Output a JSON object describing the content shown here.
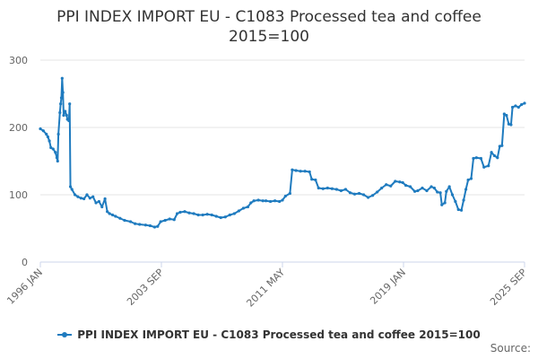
{
  "chart_data": {
    "type": "line",
    "title": "PPI INDEX IMPORT EU - C1083 Processed tea and coffee",
    "subtitle": "2015=100",
    "ylim": [
      0,
      300
    ],
    "yticks": [
      0,
      100,
      200,
      300
    ],
    "xtick_labels": [
      "1996 JAN",
      "2003 SEP",
      "2011 MAY",
      "2019 JAN",
      "2025 SEP"
    ],
    "xtick_values": [
      1996.0,
      2003.667,
      2011.333,
      2019.0,
      2025.667
    ],
    "xlim": [
      1996.0,
      2025.667
    ],
    "grid": "horizontal",
    "legend_position": "bottom",
    "color": "#1f7bbf",
    "source_label": "Source:",
    "series": [
      {
        "name": "PPI INDEX IMPORT EU - C1083 Processed tea and coffee 2015=100",
        "points": [
          [
            1996.0,
            198
          ],
          [
            1996.2,
            195
          ],
          [
            1996.4,
            190
          ],
          [
            1996.5,
            186
          ],
          [
            1996.6,
            180
          ],
          [
            1996.7,
            170
          ],
          [
            1996.85,
            168
          ],
          [
            1997.0,
            163
          ],
          [
            1997.1,
            155
          ],
          [
            1997.15,
            150
          ],
          [
            1997.2,
            190
          ],
          [
            1997.3,
            222
          ],
          [
            1997.35,
            235
          ],
          [
            1997.4,
            244
          ],
          [
            1997.45,
            273
          ],
          [
            1997.5,
            252
          ],
          [
            1997.55,
            218
          ],
          [
            1997.65,
            224
          ],
          [
            1997.75,
            218
          ],
          [
            1997.8,
            212
          ],
          [
            1997.9,
            210
          ],
          [
            1997.95,
            235
          ],
          [
            1998.0,
            112
          ],
          [
            1998.1,
            108
          ],
          [
            1998.3,
            100
          ],
          [
            1998.5,
            97
          ],
          [
            1998.7,
            95
          ],
          [
            1998.9,
            94
          ],
          [
            1999.1,
            100
          ],
          [
            1999.3,
            95
          ],
          [
            1999.5,
            97
          ],
          [
            1999.7,
            88
          ],
          [
            1999.9,
            90
          ],
          [
            2000.1,
            82
          ],
          [
            2000.3,
            94
          ],
          [
            2000.45,
            75
          ],
          [
            2000.6,
            72
          ],
          [
            2000.8,
            70
          ],
          [
            2001.0,
            68
          ],
          [
            2001.3,
            65
          ],
          [
            2001.6,
            62
          ],
          [
            2002.0,
            60
          ],
          [
            2002.3,
            57
          ],
          [
            2002.6,
            56
          ],
          [
            2003.0,
            55
          ],
          [
            2003.3,
            54
          ],
          [
            2003.6,
            52
          ],
          [
            2003.8,
            53
          ],
          [
            2004.0,
            60
          ],
          [
            2004.3,
            62
          ],
          [
            2004.6,
            64
          ],
          [
            2004.9,
            63
          ],
          [
            2005.1,
            72
          ],
          [
            2005.3,
            74
          ],
          [
            2005.6,
            75
          ],
          [
            2005.9,
            73
          ],
          [
            2006.2,
            72
          ],
          [
            2006.5,
            70
          ],
          [
            2006.8,
            70
          ],
          [
            2007.1,
            71
          ],
          [
            2007.4,
            70
          ],
          [
            2007.7,
            68
          ],
          [
            2008.0,
            66
          ],
          [
            2008.3,
            67
          ],
          [
            2008.6,
            70
          ],
          [
            2008.9,
            72
          ],
          [
            2009.2,
            76
          ],
          [
            2009.5,
            80
          ],
          [
            2009.8,
            82
          ],
          [
            2010.0,
            88
          ],
          [
            2010.2,
            91
          ],
          [
            2010.5,
            92
          ],
          [
            2010.8,
            91
          ],
          [
            2011.0,
            91
          ],
          [
            2011.3,
            90
          ],
          [
            2011.6,
            91
          ],
          [
            2011.9,
            90
          ],
          [
            2012.1,
            92
          ],
          [
            2012.3,
            98
          ],
          [
            2012.6,
            102
          ],
          [
            2012.75,
            137
          ],
          [
            2013.0,
            136
          ],
          [
            2013.3,
            135
          ],
          [
            2013.6,
            135
          ],
          [
            2013.9,
            134
          ],
          [
            2014.05,
            123
          ],
          [
            2014.3,
            122
          ],
          [
            2014.5,
            110
          ],
          [
            2014.8,
            109
          ],
          [
            2015.1,
            110
          ],
          [
            2015.4,
            109
          ],
          [
            2015.7,
            108
          ],
          [
            2016.0,
            106
          ],
          [
            2016.3,
            108
          ],
          [
            2016.6,
            103
          ],
          [
            2016.9,
            101
          ],
          [
            2017.2,
            102
          ],
          [
            2017.5,
            100
          ],
          [
            2017.8,
            96
          ],
          [
            2018.1,
            99
          ],
          [
            2018.4,
            104
          ],
          [
            2018.7,
            110
          ],
          [
            2019.0,
            115
          ],
          [
            2019.3,
            113
          ],
          [
            2019.6,
            120
          ],
          [
            2019.9,
            119
          ],
          [
            2020.1,
            118
          ],
          [
            2020.3,
            114
          ],
          [
            2020.6,
            112
          ],
          [
            2020.9,
            105
          ],
          [
            2021.1,
            106
          ],
          [
            2021.4,
            110
          ],
          [
            2021.7,
            106
          ],
          [
            2022.0,
            112
          ],
          [
            2022.2,
            110
          ],
          [
            2022.4,
            104
          ],
          [
            2022.6,
            103
          ],
          [
            2022.7,
            85
          ],
          [
            2022.9,
            88
          ],
          [
            2023.0,
            105
          ],
          [
            2023.2,
            112
          ],
          [
            2023.4,
            100
          ],
          [
            2023.6,
            90
          ],
          [
            2023.8,
            78
          ],
          [
            2024.0,
            77
          ],
          [
            2024.15,
            92
          ],
          [
            2024.3,
            108
          ],
          [
            2024.45,
            122
          ],
          [
            2024.65,
            124
          ],
          [
            2024.8,
            154
          ],
          [
            2025.0,
            155
          ],
          [
            2025.3,
            154
          ],
          [
            2025.5,
            141
          ],
          [
            2025.8,
            143
          ],
          [
            2026.0,
            163
          ],
          [
            2026.2,
            158
          ],
          [
            2026.4,
            155
          ],
          [
            2026.55,
            172
          ],
          [
            2026.7,
            173
          ],
          [
            2026.85,
            220
          ],
          [
            2027.0,
            218
          ],
          [
            2027.15,
            205
          ],
          [
            2027.3,
            204
          ],
          [
            2027.4,
            230
          ],
          [
            2027.6,
            232
          ],
          [
            2027.8,
            230
          ],
          [
            2028.0,
            234
          ],
          [
            2028.2,
            236
          ]
        ]
      }
    ]
  }
}
